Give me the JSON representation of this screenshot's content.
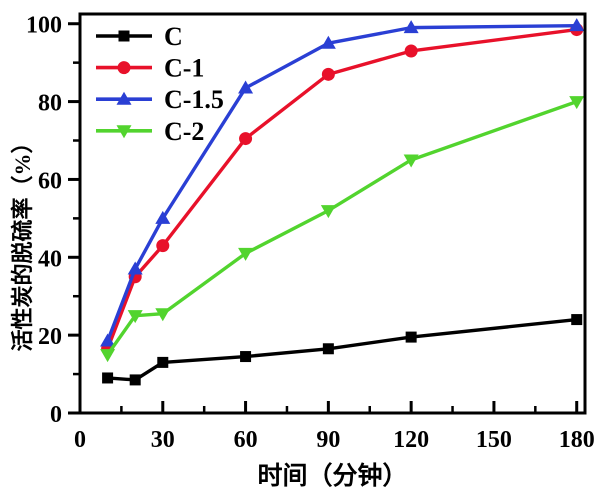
{
  "chart_data": {
    "type": "line",
    "title": "",
    "xlabel": "时间（分钟）",
    "ylabel": "活性炭的脱硫率（%）",
    "xlim": [
      0,
      183
    ],
    "ylim": [
      0,
      102.5
    ],
    "grid": false,
    "legend_position": "top-left",
    "x_ticks": [
      0,
      30,
      60,
      90,
      120,
      150,
      180
    ],
    "x_minor_ticks": [
      15,
      45,
      75,
      105,
      135,
      165
    ],
    "y_ticks": [
      0,
      20,
      40,
      60,
      80,
      100
    ],
    "y_minor_ticks": [
      10,
      30,
      50,
      70,
      90
    ],
    "x": [
      10,
      20,
      30,
      60,
      90,
      120,
      180
    ],
    "series": [
      {
        "name": "C",
        "color": "#000000",
        "marker": "square",
        "values": [
          9,
          8.5,
          13,
          14.5,
          16.5,
          19.5,
          24
        ]
      },
      {
        "name": "C-1",
        "color": "#e8112a",
        "marker": "circle",
        "values": [
          16.5,
          35,
          43,
          70.5,
          87,
          93,
          98.5
        ]
      },
      {
        "name": "C-1.5",
        "color": "#2a3fd4",
        "marker": "triangle-up",
        "values": [
          18.5,
          37,
          50,
          83.5,
          95,
          99,
          99.5
        ]
      },
      {
        "name": "C-2",
        "color": "#52d42e",
        "marker": "triangle-down",
        "values": [
          15,
          25,
          25.5,
          41,
          52,
          65,
          80
        ]
      }
    ],
    "frame_color": "#000000"
  }
}
